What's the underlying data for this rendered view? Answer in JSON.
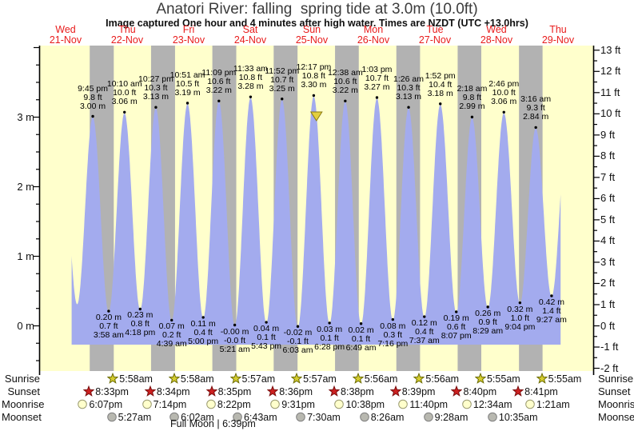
{
  "title": "Anatori River: falling  spring tide at 3.0m (10.0ft)",
  "subtitle": "Image captured One hour and 4 minutes after high water. Times are NZDT (UTC +13.0hrs)",
  "colors": {
    "day_band": "#ffffcc",
    "night_band": "#b2b2b2",
    "tide_fill": "#a3abee",
    "date_text": "#e81c1c",
    "capture_marker": "#e3cf3e",
    "sunrise_star": "#d4cc30",
    "sunset_star": "#cc2020",
    "moonrise_circle": "#ffffcc",
    "moonset_circle": "#b8b8b0"
  },
  "days": [
    {
      "name": "Wed",
      "date": "21-Nov"
    },
    {
      "name": "Thu",
      "date": "22-Nov"
    },
    {
      "name": "Fri",
      "date": "23-Nov"
    },
    {
      "name": "Sat",
      "date": "24-Nov"
    },
    {
      "name": "Sun",
      "date": "25-Nov"
    },
    {
      "name": "Mon",
      "date": "26-Nov"
    },
    {
      "name": "Tue",
      "date": "27-Nov"
    },
    {
      "name": "Wed",
      "date": "28-Nov"
    },
    {
      "name": "Thu",
      "date": "29-Nov"
    }
  ],
  "axes": {
    "left_unit": "m",
    "left_ticks": [
      "3 m",
      "2 m",
      "1 m",
      "0 m"
    ],
    "right_unit": "ft",
    "right_ticks": [
      "13 ft",
      "12 ft",
      "11 ft",
      "10 ft",
      "9 ft",
      "8 ft",
      "7 ft",
      "6 ft",
      "5 ft",
      "4 ft",
      "3 ft",
      "2 ft",
      "1 ft",
      "0 ft",
      "-1 ft",
      "-2 ft"
    ]
  },
  "chart_data": {
    "type": "area",
    "series_name": "tide height",
    "y_units": [
      "m",
      "ft"
    ],
    "ylim_m": [
      -0.65,
      4.0
    ],
    "high_tides": [
      {
        "day": 0,
        "time": "9:45 pm",
        "ft": "9.8 ft",
        "m": "3.00 m"
      },
      {
        "day": 1,
        "time": "10:10 am",
        "ft": "10.0 ft",
        "m": "3.06 m"
      },
      {
        "day": 1,
        "time": "10:27 pm",
        "ft": "10.3 ft",
        "m": "3.13 m"
      },
      {
        "day": 2,
        "time": "10:51 am",
        "ft": "10.5 ft",
        "m": "3.19 m"
      },
      {
        "day": 2,
        "time": "11:09 pm",
        "ft": "10.6 ft",
        "m": "3.22 m"
      },
      {
        "day": 3,
        "time": "11:33 am",
        "ft": "10.8 ft",
        "m": "3.28 m"
      },
      {
        "day": 3,
        "time": "11:52 pm",
        "ft": "10.7 ft",
        "m": "3.25 m"
      },
      {
        "day": 4,
        "time": "12:17 pm",
        "ft": "10.8 ft",
        "m": "3.30 m"
      },
      {
        "day": 5,
        "time": "12:38 am",
        "ft": "10.6 ft",
        "m": "3.22 m"
      },
      {
        "day": 5,
        "time": "1:03 pm",
        "ft": "10.7 ft",
        "m": "3.27 m"
      },
      {
        "day": 6,
        "time": "1:26 am",
        "ft": "10.3 ft",
        "m": "3.13 m"
      },
      {
        "day": 6,
        "time": "1:52 pm",
        "ft": "10.4 ft",
        "m": "3.18 m"
      },
      {
        "day": 7,
        "time": "2:18 am",
        "ft": "9.8 ft",
        "m": "2.99 m"
      },
      {
        "day": 7,
        "time": "2:46 pm",
        "ft": "10.0 ft",
        "m": "3.06 m"
      },
      {
        "day": 8,
        "time": "3:16 am",
        "ft": "9.3 ft",
        "m": "2.84 m"
      }
    ],
    "low_tides": [
      {
        "day": 1,
        "time": "3:58 am",
        "ft": "0.7 ft",
        "m": "0.20 m"
      },
      {
        "day": 1,
        "time": "4:18 pm",
        "ft": "0.8 ft",
        "m": "0.23 m"
      },
      {
        "day": 2,
        "time": "4:39 am",
        "ft": "0.2 ft",
        "m": "0.07 m"
      },
      {
        "day": 2,
        "time": "5:00 pm",
        "ft": "0.4 ft",
        "m": "0.11 m"
      },
      {
        "day": 3,
        "time": "5:21 am",
        "ft": "-0.0 ft",
        "m": "-0.00 m"
      },
      {
        "day": 3,
        "time": "5:43 pm",
        "ft": "0.1 ft",
        "m": "0.04 m"
      },
      {
        "day": 4,
        "time": "6:03 am",
        "ft": "-0.1 ft",
        "m": "-0.02 m"
      },
      {
        "day": 4,
        "time": "6:28 pm",
        "ft": "0.1 ft",
        "m": "0.03 m"
      },
      {
        "day": 5,
        "time": "6:49 am",
        "ft": "0.1 ft",
        "m": "0.02 m"
      },
      {
        "day": 5,
        "time": "7:16 pm",
        "ft": "0.3 ft",
        "m": "0.08 m"
      },
      {
        "day": 6,
        "time": "7:37 am",
        "ft": "0.4 ft",
        "m": "0.12 m"
      },
      {
        "day": 6,
        "time": "8:07 pm",
        "ft": "0.6 ft",
        "m": "0.19 m"
      },
      {
        "day": 7,
        "time": "8:29 am",
        "ft": "0.9 ft",
        "m": "0.26 m"
      },
      {
        "day": 7,
        "time": "9:04 pm",
        "ft": "1.0 ft",
        "m": "0.32 m"
      },
      {
        "day": 8,
        "time": "9:27 am",
        "ft": "1.4 ft",
        "m": "0.42 m"
      }
    ],
    "capture_marker": {
      "day": 4,
      "time": "1:21 pm"
    }
  },
  "astronomy": {
    "left_labels": [
      "Sunrise",
      "Sunset",
      "Moonrise",
      "Moonset"
    ],
    "right_labels": [
      "Sunrise",
      "Sunset",
      "Moonrise",
      "Moonset"
    ],
    "sunrise": [
      {
        "day": 1,
        "time": "5:58am"
      },
      {
        "day": 2,
        "time": "5:58am"
      },
      {
        "day": 3,
        "time": "5:57am"
      },
      {
        "day": 4,
        "time": "5:57am"
      },
      {
        "day": 5,
        "time": "5:56am"
      },
      {
        "day": 6,
        "time": "5:56am"
      },
      {
        "day": 7,
        "time": "5:55am"
      },
      {
        "day": 8,
        "time": "5:55am"
      }
    ],
    "sunset": [
      {
        "day": 0,
        "time": "8:33pm"
      },
      {
        "day": 1,
        "time": "8:34pm"
      },
      {
        "day": 2,
        "time": "8:35pm"
      },
      {
        "day": 3,
        "time": "8:36pm"
      },
      {
        "day": 4,
        "time": "8:38pm"
      },
      {
        "day": 5,
        "time": "8:39pm"
      },
      {
        "day": 6,
        "time": "8:40pm"
      },
      {
        "day": 7,
        "time": "8:41pm"
      }
    ],
    "moonrise": [
      {
        "day": 0,
        "time": "6:07pm"
      },
      {
        "day": 1,
        "time": "7:14pm"
      },
      {
        "day": 2,
        "time": "8:22pm"
      },
      {
        "day": 3,
        "time": "9:31pm"
      },
      {
        "day": 4,
        "time": "10:38pm"
      },
      {
        "day": 5,
        "time": "11:40pm"
      },
      {
        "day": 7,
        "time": "12:34am"
      },
      {
        "day": 8,
        "time": "1:21am"
      }
    ],
    "moonset": [
      {
        "day": 1,
        "time": "5:27am"
      },
      {
        "day": 2,
        "time": "6:02am"
      },
      {
        "day": 3,
        "time": "6:43am"
      },
      {
        "day": 4,
        "time": "7:30am"
      },
      {
        "day": 5,
        "time": "8:26am"
      },
      {
        "day": 6,
        "time": "9:28am"
      },
      {
        "day": 7,
        "time": "10:35am"
      }
    ],
    "full_moon": "Full Moon | 6:39pm"
  }
}
